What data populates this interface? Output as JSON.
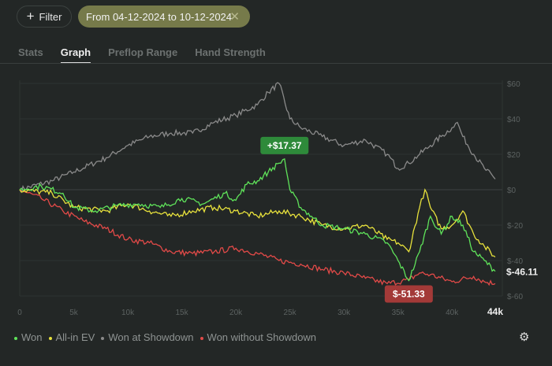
{
  "toolbar": {
    "filter_label": "Filter",
    "date_chip": "From 04-12-2024 to 10-12-2024",
    "close_icon": "close-icon",
    "plus_icon": "plus-icon"
  },
  "tabs": [
    {
      "label": "Stats"
    },
    {
      "label": "Graph",
      "active": true
    },
    {
      "label": "Preflop Range"
    },
    {
      "label": "Hand Strength"
    }
  ],
  "settings_icon": "gear-icon",
  "chart_data": {
    "type": "line",
    "xlim": [
      0,
      44000
    ],
    "ylim": [
      -60,
      60
    ],
    "x_ticks": [
      "0",
      "5k",
      "10k",
      "15k",
      "20k",
      "25k",
      "30k",
      "35k",
      "40k",
      "44k"
    ],
    "y_ticks": [
      "$60",
      "$40",
      "$20",
      "$0",
      "$-20",
      "$-40",
      "$-60"
    ],
    "grid": true,
    "legend": "bottom-left",
    "annotations": {
      "max": "+$17.37",
      "min": "$-51.33",
      "last": "$-46.11"
    },
    "series": [
      {
        "name": "Won",
        "color": "#5fe35a",
        "points": [
          [
            0,
            0
          ],
          [
            2000,
            2
          ],
          [
            4000,
            -2
          ],
          [
            5000,
            -10
          ],
          [
            7000,
            -12
          ],
          [
            9000,
            -9
          ],
          [
            11000,
            -8
          ],
          [
            13000,
            -10
          ],
          [
            15000,
            -5
          ],
          [
            17000,
            -8
          ],
          [
            19000,
            -2
          ],
          [
            20000,
            -6
          ],
          [
            21000,
            3
          ],
          [
            22000,
            5
          ],
          [
            23000,
            10
          ],
          [
            24000,
            15
          ],
          [
            24500,
            17.37
          ],
          [
            25000,
            0
          ],
          [
            26000,
            -10
          ],
          [
            27000,
            -15
          ],
          [
            28000,
            -20
          ],
          [
            30000,
            -22
          ],
          [
            32000,
            -25
          ],
          [
            34000,
            -30
          ],
          [
            35000,
            -40
          ],
          [
            36000,
            -51.33
          ],
          [
            37000,
            -35
          ],
          [
            38000,
            -15
          ],
          [
            39000,
            -25
          ],
          [
            40000,
            -15
          ],
          [
            41000,
            -20
          ],
          [
            42000,
            -35
          ],
          [
            43000,
            -40
          ],
          [
            44000,
            -46.11
          ]
        ]
      },
      {
        "name": "All-in EV",
        "color": "#e8e23c",
        "points": [
          [
            0,
            0
          ],
          [
            3000,
            -2
          ],
          [
            5000,
            -10
          ],
          [
            8000,
            -12
          ],
          [
            10000,
            -8
          ],
          [
            12000,
            -12
          ],
          [
            14000,
            -15
          ],
          [
            16000,
            -12
          ],
          [
            18000,
            -10
          ],
          [
            20000,
            -12
          ],
          [
            22000,
            -15
          ],
          [
            24000,
            -12
          ],
          [
            26000,
            -15
          ],
          [
            28000,
            -20
          ],
          [
            30000,
            -22
          ],
          [
            32000,
            -20
          ],
          [
            34000,
            -28
          ],
          [
            35000,
            -30
          ],
          [
            36000,
            -35
          ],
          [
            37000,
            -10
          ],
          [
            37500,
            0
          ],
          [
            38000,
            -10
          ],
          [
            39000,
            -22
          ],
          [
            40000,
            -20
          ],
          [
            41000,
            -12
          ],
          [
            42000,
            -25
          ],
          [
            43000,
            -32
          ],
          [
            44000,
            -38
          ]
        ]
      },
      {
        "name": "Won at Showdown",
        "color": "#8a8a8a",
        "points": [
          [
            0,
            0
          ],
          [
            3000,
            5
          ],
          [
            5000,
            10
          ],
          [
            8000,
            18
          ],
          [
            10000,
            25
          ],
          [
            12000,
            30
          ],
          [
            14000,
            32
          ],
          [
            16000,
            32
          ],
          [
            18000,
            38
          ],
          [
            20000,
            42
          ],
          [
            22000,
            48
          ],
          [
            23000,
            55
          ],
          [
            24000,
            60
          ],
          [
            25000,
            40
          ],
          [
            26000,
            35
          ],
          [
            28000,
            30
          ],
          [
            30000,
            25
          ],
          [
            32000,
            28
          ],
          [
            34000,
            20
          ],
          [
            35000,
            12
          ],
          [
            36000,
            15
          ],
          [
            37000,
            20
          ],
          [
            38000,
            25
          ],
          [
            39000,
            30
          ],
          [
            40000,
            35
          ],
          [
            40500,
            38
          ],
          [
            41000,
            30
          ],
          [
            42000,
            20
          ],
          [
            43000,
            12
          ],
          [
            44000,
            6
          ]
        ]
      },
      {
        "name": "Won without Showdown",
        "color": "#e24a48",
        "points": [
          [
            0,
            0
          ],
          [
            2000,
            -5
          ],
          [
            4000,
            -12
          ],
          [
            6000,
            -18
          ],
          [
            8000,
            -22
          ],
          [
            10000,
            -28
          ],
          [
            12000,
            -30
          ],
          [
            14000,
            -35
          ],
          [
            16000,
            -36
          ],
          [
            18000,
            -35
          ],
          [
            20000,
            -33
          ],
          [
            22000,
            -36
          ],
          [
            24000,
            -40
          ],
          [
            26000,
            -42
          ],
          [
            28000,
            -45
          ],
          [
            30000,
            -47
          ],
          [
            32000,
            -50
          ],
          [
            34000,
            -53
          ],
          [
            36000,
            -51
          ],
          [
            37000,
            -47
          ],
          [
            38000,
            -48
          ],
          [
            40000,
            -52
          ],
          [
            42000,
            -49
          ],
          [
            43000,
            -52
          ],
          [
            44000,
            -53
          ]
        ]
      }
    ]
  }
}
